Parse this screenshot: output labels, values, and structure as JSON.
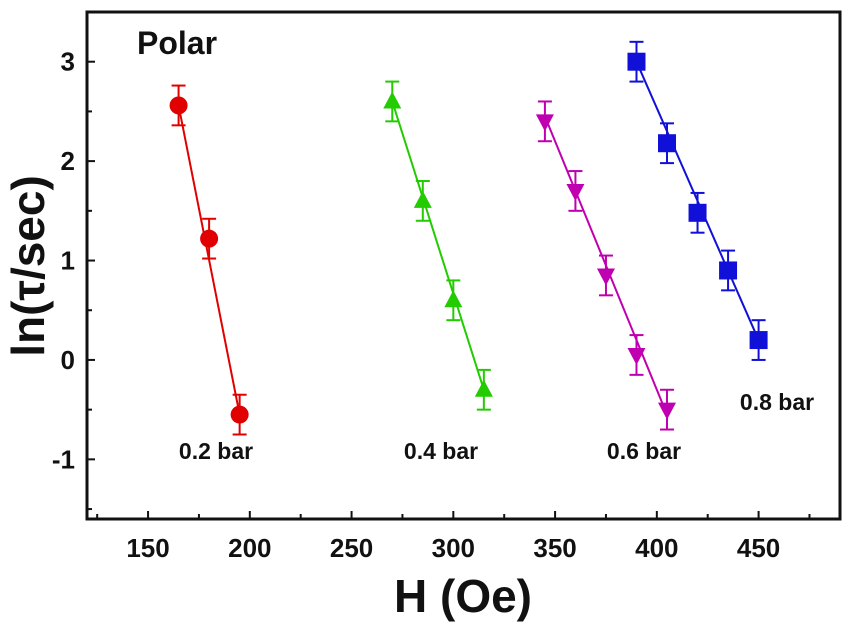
{
  "chart_data": {
    "type": "scatter",
    "title": "Polar",
    "xlabel": "H (Oe)",
    "ylabel": "ln(τ/sec)",
    "xlim": [
      120,
      490
    ],
    "ylim": [
      -1.6,
      3.5
    ],
    "xticks": [
      150,
      200,
      250,
      300,
      350,
      400,
      450
    ],
    "yticks": [
      -1,
      0,
      1,
      2,
      3
    ],
    "grid": false,
    "series": [
      {
        "name": "0.2 bar",
        "label": "0.2 bar",
        "color": "#e00000",
        "marker": "circle",
        "points": [
          {
            "x": 165,
            "y": 2.56,
            "err": 0.2
          },
          {
            "x": 180,
            "y": 1.22,
            "err": 0.2
          },
          {
            "x": 195,
            "y": -0.55,
            "err": 0.2
          }
        ],
        "fit": [
          {
            "x": 165,
            "y": 2.56
          },
          {
            "x": 195,
            "y": -0.55
          }
        ]
      },
      {
        "name": "0.4 bar",
        "label": "0.4 bar",
        "color": "#22cc00",
        "marker": "triangle-up",
        "points": [
          {
            "x": 270,
            "y": 2.6,
            "err": 0.2
          },
          {
            "x": 285,
            "y": 1.6,
            "err": 0.2
          },
          {
            "x": 300,
            "y": 0.6,
            "err": 0.2
          },
          {
            "x": 315,
            "y": -0.3,
            "err": 0.2
          }
        ],
        "fit": [
          {
            "x": 270,
            "y": 2.6
          },
          {
            "x": 315,
            "y": -0.3
          }
        ]
      },
      {
        "name": "0.6 bar",
        "label": "0.6 bar",
        "color": "#c000b0",
        "marker": "triangle-down",
        "points": [
          {
            "x": 345,
            "y": 2.4,
            "err": 0.2
          },
          {
            "x": 360,
            "y": 1.7,
            "err": 0.2
          },
          {
            "x": 375,
            "y": 0.85,
            "err": 0.2
          },
          {
            "x": 390,
            "y": 0.05,
            "err": 0.2
          },
          {
            "x": 405,
            "y": -0.5,
            "err": 0.2
          }
        ],
        "fit": [
          {
            "x": 345,
            "y": 2.45
          },
          {
            "x": 405,
            "y": -0.55
          }
        ]
      },
      {
        "name": "0.8 bar",
        "label": "0.8 bar",
        "color": "#1010d8",
        "marker": "square",
        "points": [
          {
            "x": 390,
            "y": 3.0,
            "err": 0.2
          },
          {
            "x": 405,
            "y": 2.18,
            "err": 0.2
          },
          {
            "x": 420,
            "y": 1.48,
            "err": 0.2
          },
          {
            "x": 435,
            "y": 0.9,
            "err": 0.2
          },
          {
            "x": 450,
            "y": 0.2,
            "err": 0.2
          }
        ],
        "fit": [
          {
            "x": 390,
            "y": 3.0
          },
          {
            "x": 450,
            "y": 0.2
          }
        ]
      }
    ]
  }
}
